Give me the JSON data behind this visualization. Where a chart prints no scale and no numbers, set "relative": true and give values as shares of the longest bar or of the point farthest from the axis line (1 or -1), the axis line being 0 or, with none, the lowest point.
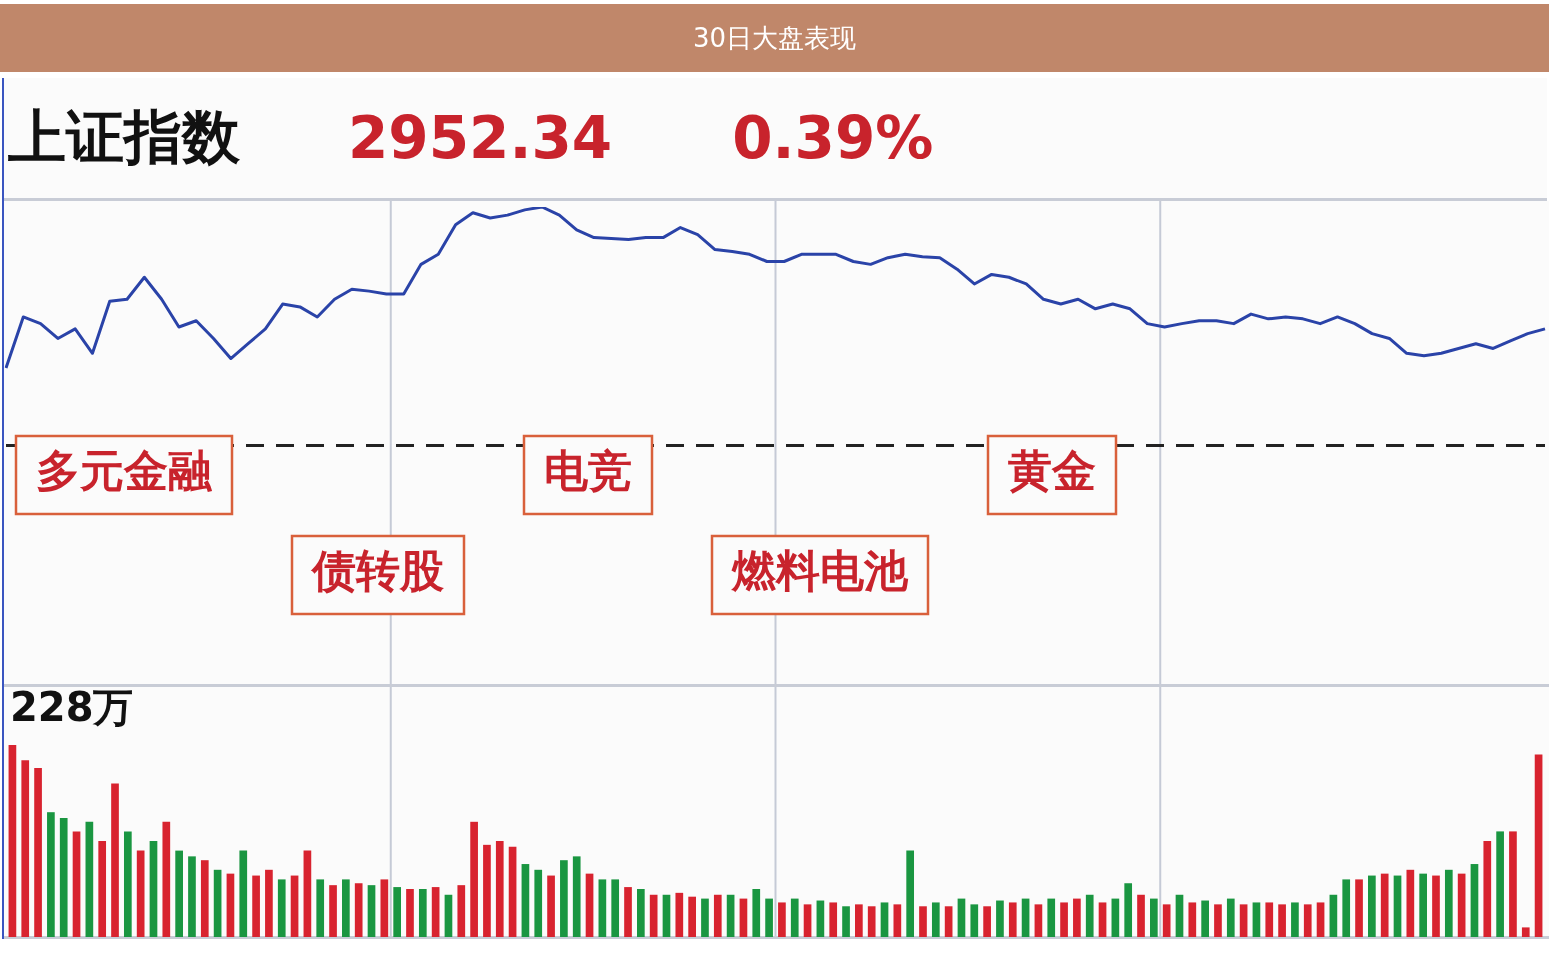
{
  "chart_data": [
    {
      "type": "line",
      "title": "30日大盘表现",
      "subtitle": "上证指数",
      "relative": true,
      "grid": "x",
      "color": "#2a43a8",
      "annotations": [
        "2952.34",
        "0.39%",
        "多元金融",
        "债转股",
        "电竞",
        "燃料电池",
        "黄金"
      ],
      "ref_lines": [
        {
          "axis": "y",
          "value": 0.501,
          "color": "#222222",
          "line_style": "dashed"
        }
      ],
      "categories": [
        null,
        null,
        null,
        null,
        null,
        null,
        null,
        null,
        null,
        null,
        null,
        null,
        null,
        null,
        null,
        null,
        null,
        null,
        null,
        null,
        null,
        null,
        null,
        null,
        null,
        null,
        null,
        null,
        null,
        null,
        null,
        null,
        null,
        null,
        null,
        null,
        null,
        null,
        null,
        null,
        null,
        null,
        null,
        null,
        null,
        null,
        null,
        null,
        null,
        null,
        null,
        null,
        null,
        null,
        null,
        null,
        null,
        null,
        null,
        null,
        null,
        null,
        null,
        null,
        null,
        null,
        null,
        null,
        null,
        null,
        null,
        null,
        null,
        null,
        null,
        null,
        null,
        null,
        null,
        null,
        null,
        null,
        null,
        null,
        null,
        null,
        null,
        null,
        null,
        null
      ],
      "values": [
        0.663,
        0.77,
        0.756,
        0.725,
        0.745,
        0.694,
        0.803,
        0.807,
        0.853,
        0.807,
        0.749,
        0.762,
        0.725,
        0.683,
        0.714,
        0.745,
        0.797,
        0.791,
        0.77,
        0.807,
        0.828,
        0.824,
        0.818,
        0.818,
        0.88,
        0.901,
        0.963,
        0.988,
        0.977,
        0.983,
        0.994,
        1,
        0.983,
        0.952,
        0.936,
        0.934,
        0.932,
        0.936,
        0.936,
        0.957,
        0.942,
        0.911,
        0.907,
        0.901,
        0.886,
        0.886,
        0.901,
        0.901,
        0.901,
        0.886,
        0.88,
        0.894,
        0.901,
        0.896,
        0.894,
        0.87,
        0.839,
        0.859,
        0.853,
        0.839,
        0.807,
        0.797,
        0.807,
        0.787,
        0.797,
        0.787,
        0.756,
        0.749,
        0.756,
        0.762,
        0.762,
        0.756,
        0.776,
        0.766,
        0.77,
        0.766,
        0.756,
        0.77,
        0.756,
        0.735,
        0.725,
        0.694,
        0.689,
        0.694,
        0.704,
        0.714,
        0.704,
        0.72,
        0.735,
        0.745
      ]
    },
    {
      "type": "bar",
      "relative": true,
      "grid": "x",
      "annotations": [
        "228万"
      ],
      "categories": [
        null,
        null,
        null,
        null,
        null,
        null,
        null,
        null,
        null,
        null,
        null,
        null,
        null,
        null,
        null,
        null,
        null,
        null,
        null,
        null,
        null,
        null,
        null,
        null,
        null,
        null,
        null,
        null,
        null,
        null,
        null,
        null,
        null,
        null,
        null,
        null,
        null,
        null,
        null,
        null,
        null,
        null,
        null,
        null,
        null,
        null,
        null,
        null,
        null,
        null,
        null,
        null,
        null,
        null,
        null,
        null,
        null,
        null,
        null,
        null,
        null,
        null,
        null,
        null,
        null,
        null,
        null,
        null,
        null,
        null,
        null,
        null,
        null,
        null,
        null,
        null,
        null,
        null,
        null,
        null,
        null,
        null,
        null,
        null,
        null,
        null,
        null,
        null,
        null,
        null,
        null,
        null,
        null,
        null,
        null,
        null,
        null,
        null,
        null,
        null,
        null,
        null,
        null,
        null,
        null,
        null,
        null,
        null,
        null,
        null,
        null,
        null,
        null,
        null,
        null,
        null,
        null,
        null,
        null,
        null
      ],
      "values": [
        1,
        0.92,
        0.88,
        0.65,
        0.62,
        0.55,
        0.6,
        0.5,
        0.8,
        0.55,
        0.45,
        0.5,
        0.6,
        0.45,
        0.42,
        0.4,
        0.35,
        0.33,
        0.45,
        0.32,
        0.35,
        0.3,
        0.32,
        0.45,
        0.3,
        0.27,
        0.3,
        0.28,
        0.27,
        0.3,
        0.26,
        0.25,
        0.25,
        0.26,
        0.22,
        0.27,
        0.6,
        0.48,
        0.5,
        0.47,
        0.38,
        0.35,
        0.32,
        0.4,
        0.42,
        0.33,
        0.3,
        0.3,
        0.26,
        0.25,
        0.22,
        0.22,
        0.23,
        0.21,
        0.2,
        0.22,
        0.22,
        0.2,
        0.25,
        0.2,
        0.18,
        0.2,
        0.17,
        0.19,
        0.18,
        0.16,
        0.17,
        0.16,
        0.18,
        0.17,
        0.45,
        0.16,
        0.18,
        0.16,
        0.2,
        0.17,
        0.16,
        0.19,
        0.18,
        0.2,
        0.17,
        0.2,
        0.18,
        0.2,
        0.22,
        0.18,
        0.2,
        0.28,
        0.22,
        0.2,
        0.17,
        0.22,
        0.18,
        0.19,
        0.17,
        0.2,
        0.17,
        0.18,
        0.18,
        0.17,
        0.18,
        0.17,
        0.18,
        0.22,
        0.3,
        0.3,
        0.32,
        0.33,
        0.32,
        0.35,
        0.33,
        0.32,
        0.35,
        0.33,
        0.38,
        0.5,
        0.55,
        0.55,
        0.05,
        0.95
      ],
      "colors": [
        "#d8232f",
        "#d8232f",
        "#d8232f",
        "#1a9641",
        "#1a9641",
        "#d8232f",
        "#1a9641",
        "#d8232f",
        "#d8232f",
        "#1a9641",
        "#d8232f",
        "#1a9641",
        "#d8232f",
        "#1a9641",
        "#1a9641",
        "#d8232f",
        "#1a9641",
        "#d8232f",
        "#1a9641",
        "#d8232f",
        "#d8232f",
        "#1a9641",
        "#d8232f",
        "#d8232f",
        "#1a9641",
        "#d8232f",
        "#1a9641",
        "#d8232f",
        "#1a9641",
        "#d8232f",
        "#1a9641",
        "#d8232f",
        "#1a9641",
        "#d8232f",
        "#1a9641",
        "#d8232f",
        "#d8232f",
        "#d8232f",
        "#d8232f",
        "#d8232f",
        "#1a9641",
        "#1a9641",
        "#d8232f",
        "#1a9641",
        "#1a9641",
        "#d8232f",
        "#1a9641",
        "#1a9641",
        "#d8232f",
        "#1a9641",
        "#d8232f",
        "#1a9641",
        "#d8232f",
        "#d8232f",
        "#1a9641",
        "#d8232f",
        "#1a9641",
        "#d8232f",
        "#1a9641",
        "#1a9641",
        "#d8232f",
        "#1a9641",
        "#d8232f",
        "#1a9641",
        "#d8232f",
        "#1a9641",
        "#d8232f",
        "#d8232f",
        "#1a9641",
        "#d8232f",
        "#1a9641",
        "#d8232f",
        "#1a9641",
        "#d8232f",
        "#1a9641",
        "#1a9641",
        "#d8232f",
        "#1a9641",
        "#d8232f",
        "#1a9641",
        "#d8232f",
        "#1a9641",
        "#d8232f",
        "#d8232f",
        "#1a9641",
        "#d8232f",
        "#1a9641",
        "#1a9641",
        "#d8232f",
        "#1a9641",
        "#d8232f",
        "#1a9641",
        "#d8232f",
        "#1a9641",
        "#d8232f",
        "#1a9641",
        "#d8232f",
        "#1a9641",
        "#d8232f",
        "#d8232f",
        "#1a9641",
        "#d8232f",
        "#d8232f",
        "#1a9641",
        "#1a9641",
        "#d8232f",
        "#1a9641",
        "#d8232f",
        "#1a9641",
        "#d8232f",
        "#1a9641",
        "#d8232f",
        "#1a9641",
        "#d8232f",
        "#1a9641",
        "#d8232f",
        "#1a9641",
        "#d8232f",
        "#d8232f",
        "#d8232f"
      ]
    }
  ]
}
